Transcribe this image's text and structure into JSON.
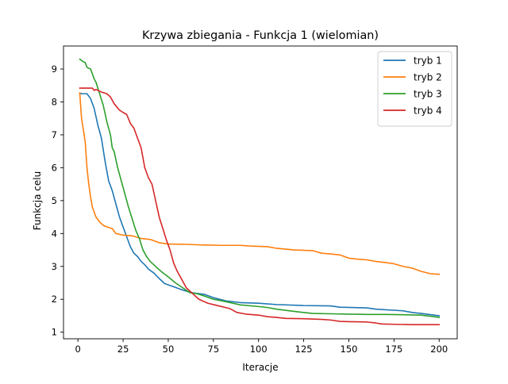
{
  "chart_data": {
    "type": "line",
    "title": "Krzywa zbiegania - Funkcja 1 (wielomian)",
    "xlabel": "Iteracje",
    "ylabel": "Funkcja celu",
    "xlim": [
      -8,
      210
    ],
    "ylim": [
      0.8,
      9.7
    ],
    "xticks": [
      0,
      25,
      50,
      75,
      100,
      125,
      150,
      175,
      200
    ],
    "yticks": [
      1,
      2,
      3,
      4,
      5,
      6,
      7,
      8,
      9
    ],
    "legend_position": "top-right",
    "grid": false,
    "series": [
      {
        "name": "tryb 1",
        "color": "#1f77b4",
        "points": [
          [
            1,
            8.27
          ],
          [
            2,
            8.25
          ],
          [
            5,
            8.25
          ],
          [
            7,
            8.1
          ],
          [
            9,
            7.8
          ],
          [
            11,
            7.3
          ],
          [
            13,
            6.9
          ],
          [
            15,
            6.2
          ],
          [
            17,
            5.6
          ],
          [
            19,
            5.3
          ],
          [
            21,
            4.9
          ],
          [
            23,
            4.5
          ],
          [
            25,
            4.2
          ],
          [
            27,
            3.9
          ],
          [
            29,
            3.6
          ],
          [
            31,
            3.4
          ],
          [
            33,
            3.3
          ],
          [
            35,
            3.15
          ],
          [
            37,
            3.05
          ],
          [
            39,
            2.92
          ],
          [
            42,
            2.8
          ],
          [
            45,
            2.63
          ],
          [
            48,
            2.48
          ],
          [
            52,
            2.4
          ],
          [
            57,
            2.3
          ],
          [
            63,
            2.2
          ],
          [
            70,
            2.15
          ],
          [
            75,
            2.05
          ],
          [
            82,
            1.95
          ],
          [
            90,
            1.9
          ],
          [
            100,
            1.88
          ],
          [
            110,
            1.84
          ],
          [
            125,
            1.81
          ],
          [
            140,
            1.8
          ],
          [
            145,
            1.76
          ],
          [
            160,
            1.74
          ],
          [
            165,
            1.7
          ],
          [
            180,
            1.65
          ],
          [
            185,
            1.6
          ],
          [
            190,
            1.57
          ],
          [
            200,
            1.5
          ]
        ]
      },
      {
        "name": "tryb 2",
        "color": "#ff7f0e",
        "points": [
          [
            1,
            8.27
          ],
          [
            2,
            7.5
          ],
          [
            4,
            6.8
          ],
          [
            5,
            6.0
          ],
          [
            6,
            5.5
          ],
          [
            7,
            5.1
          ],
          [
            8,
            4.8
          ],
          [
            10,
            4.5
          ],
          [
            12,
            4.35
          ],
          [
            14,
            4.25
          ],
          [
            16,
            4.2
          ],
          [
            19,
            4.15
          ],
          [
            21,
            4.0
          ],
          [
            25,
            3.95
          ],
          [
            30,
            3.93
          ],
          [
            35,
            3.85
          ],
          [
            40,
            3.82
          ],
          [
            45,
            3.72
          ],
          [
            50,
            3.68
          ],
          [
            60,
            3.67
          ],
          [
            70,
            3.65
          ],
          [
            80,
            3.64
          ],
          [
            90,
            3.64
          ],
          [
            95,
            3.62
          ],
          [
            105,
            3.6
          ],
          [
            110,
            3.55
          ],
          [
            120,
            3.5
          ],
          [
            130,
            3.48
          ],
          [
            135,
            3.4
          ],
          [
            140,
            3.38
          ],
          [
            145,
            3.35
          ],
          [
            150,
            3.25
          ],
          [
            155,
            3.22
          ],
          [
            160,
            3.2
          ],
          [
            165,
            3.15
          ],
          [
            170,
            3.12
          ],
          [
            175,
            3.08
          ],
          [
            180,
            3.0
          ],
          [
            185,
            2.95
          ],
          [
            190,
            2.85
          ],
          [
            195,
            2.78
          ],
          [
            200,
            2.76
          ]
        ]
      },
      {
        "name": "tryb 3",
        "color": "#2ca02c",
        "points": [
          [
            1,
            9.3
          ],
          [
            3,
            9.22
          ],
          [
            4,
            9.2
          ],
          [
            5,
            9.05
          ],
          [
            7,
            9.0
          ],
          [
            9,
            8.7
          ],
          [
            10,
            8.6
          ],
          [
            12,
            8.25
          ],
          [
            14,
            7.9
          ],
          [
            16,
            7.4
          ],
          [
            18,
            7.0
          ],
          [
            19,
            6.6
          ],
          [
            20,
            6.5
          ],
          [
            22,
            6.0
          ],
          [
            24,
            5.6
          ],
          [
            26,
            5.2
          ],
          [
            28,
            4.8
          ],
          [
            30,
            4.45
          ],
          [
            32,
            4.1
          ],
          [
            34,
            3.85
          ],
          [
            36,
            3.5
          ],
          [
            38,
            3.3
          ],
          [
            40,
            3.15
          ],
          [
            43,
            3.0
          ],
          [
            46,
            2.85
          ],
          [
            50,
            2.68
          ],
          [
            54,
            2.5
          ],
          [
            58,
            2.35
          ],
          [
            62,
            2.2
          ],
          [
            66,
            2.17
          ],
          [
            70,
            2.1
          ],
          [
            75,
            2.0
          ],
          [
            80,
            1.95
          ],
          [
            90,
            1.83
          ],
          [
            100,
            1.78
          ],
          [
            105,
            1.75
          ],
          [
            110,
            1.7
          ],
          [
            120,
            1.63
          ],
          [
            130,
            1.57
          ],
          [
            140,
            1.56
          ],
          [
            150,
            1.55
          ],
          [
            160,
            1.54
          ],
          [
            170,
            1.54
          ],
          [
            180,
            1.53
          ],
          [
            190,
            1.52
          ],
          [
            196,
            1.48
          ],
          [
            200,
            1.45
          ]
        ]
      },
      {
        "name": "tryb 4",
        "color": "#d62728",
        "points": [
          [
            1,
            8.42
          ],
          [
            5,
            8.42
          ],
          [
            8,
            8.42
          ],
          [
            9,
            8.35
          ],
          [
            10,
            8.38
          ],
          [
            13,
            8.3
          ],
          [
            16,
            8.25
          ],
          [
            18,
            8.15
          ],
          [
            20,
            7.95
          ],
          [
            23,
            7.75
          ],
          [
            25,
            7.68
          ],
          [
            27,
            7.62
          ],
          [
            29,
            7.35
          ],
          [
            31,
            7.2
          ],
          [
            33,
            6.9
          ],
          [
            35,
            6.6
          ],
          [
            36,
            6.3
          ],
          [
            37,
            6.0
          ],
          [
            39,
            5.7
          ],
          [
            41,
            5.5
          ],
          [
            43,
            5.0
          ],
          [
            45,
            4.5
          ],
          [
            47,
            4.15
          ],
          [
            49,
            3.8
          ],
          [
            51,
            3.5
          ],
          [
            53,
            3.1
          ],
          [
            55,
            2.85
          ],
          [
            57,
            2.65
          ],
          [
            60,
            2.35
          ],
          [
            64,
            2.15
          ],
          [
            67,
            2.0
          ],
          [
            72,
            1.88
          ],
          [
            78,
            1.8
          ],
          [
            84,
            1.72
          ],
          [
            88,
            1.6
          ],
          [
            93,
            1.55
          ],
          [
            100,
            1.52
          ],
          [
            105,
            1.47
          ],
          [
            110,
            1.45
          ],
          [
            115,
            1.42
          ],
          [
            125,
            1.41
          ],
          [
            135,
            1.39
          ],
          [
            140,
            1.37
          ],
          [
            145,
            1.33
          ],
          [
            150,
            1.32
          ],
          [
            160,
            1.31
          ],
          [
            165,
            1.28
          ],
          [
            168,
            1.25
          ],
          [
            175,
            1.24
          ],
          [
            185,
            1.23
          ],
          [
            200,
            1.23
          ]
        ]
      }
    ]
  }
}
